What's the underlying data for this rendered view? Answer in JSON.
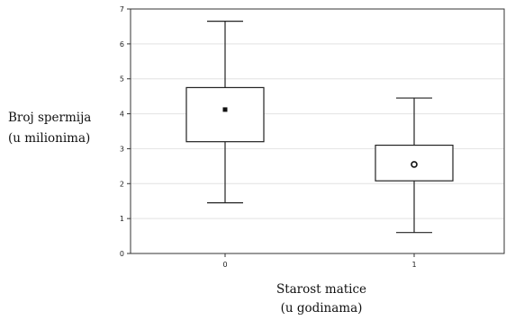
{
  "chart_data": {
    "type": "boxplot",
    "xlabel": [
      "Starost matice",
      "(u godinama)"
    ],
    "ylabel": [
      "Broj spermija",
      "(u milionima)"
    ],
    "categories": [
      "0",
      "1"
    ],
    "ylim": [
      0,
      7
    ],
    "yticks": [
      "0",
      "1",
      "2",
      "3",
      "4",
      "5",
      "6",
      "7"
    ],
    "grid": true,
    "boxes": [
      {
        "category": "0",
        "whisker_low": 1.45,
        "q1": 3.2,
        "median": 4.12,
        "q3": 4.75,
        "whisker_high": 6.65,
        "marker": "filled-square"
      },
      {
        "category": "1",
        "whisker_low": 0.6,
        "q1": 2.08,
        "median": 2.55,
        "q3": 3.1,
        "whisker_high": 4.45,
        "marker": "ring-circle"
      }
    ]
  }
}
